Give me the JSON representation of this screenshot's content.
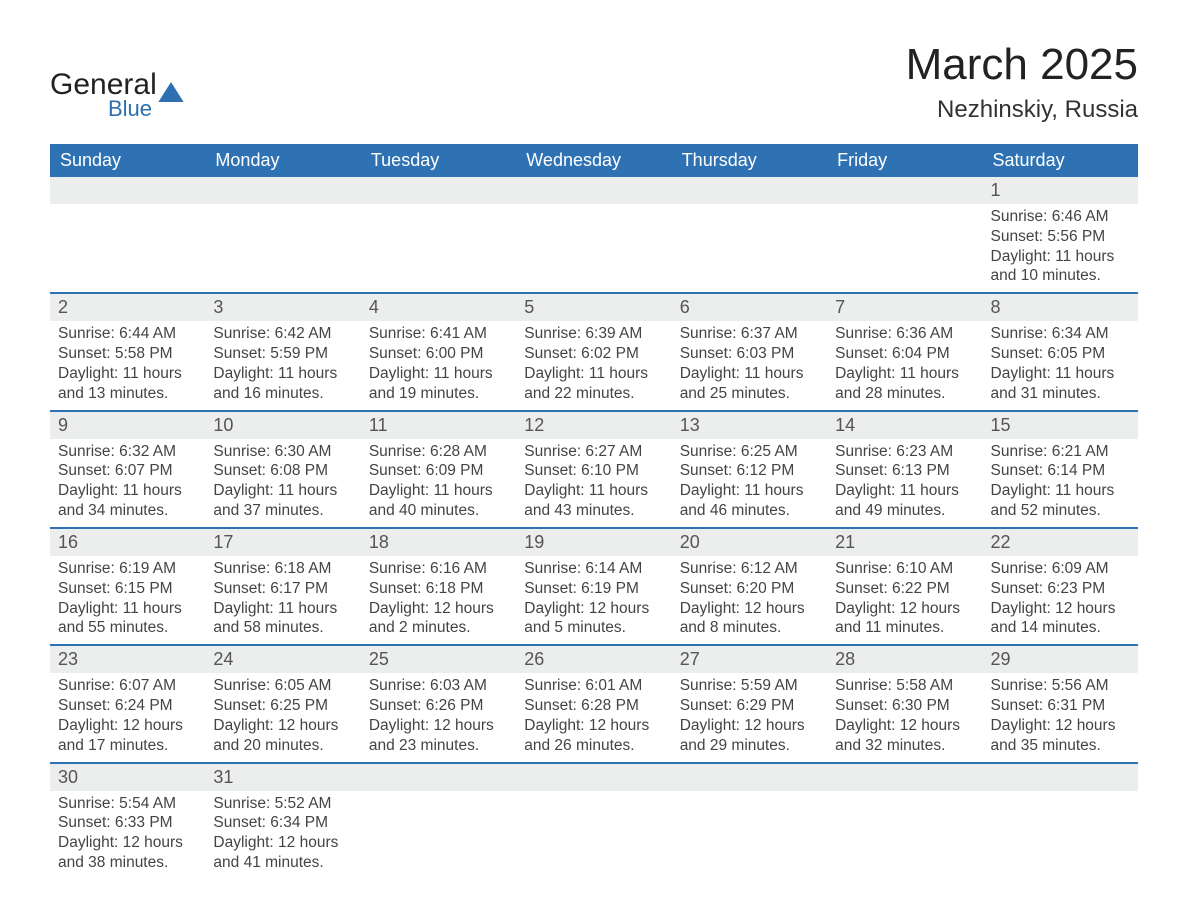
{
  "brand": {
    "name": "General",
    "sub": "Blue"
  },
  "title": "March 2025",
  "location": "Nezhinskiy, Russia",
  "colors": {
    "header_bg": "#2f72b3",
    "header_text": "#ffffff",
    "daynum_bg": "#eceded",
    "row_border": "#2f72b3",
    "body_text": "#444444",
    "title_text": "#222222",
    "brand_accent": "#2d6fb0",
    "page_bg": "#ffffff"
  },
  "typography": {
    "title_fontsize": 44,
    "location_fontsize": 24,
    "header_fontsize": 18,
    "daynum_fontsize": 18,
    "detail_fontsize": 15.5
  },
  "weekdays": [
    "Sunday",
    "Monday",
    "Tuesday",
    "Wednesday",
    "Thursday",
    "Friday",
    "Saturday"
  ],
  "weeks": [
    [
      null,
      null,
      null,
      null,
      null,
      null,
      {
        "n": "1",
        "sr": "Sunrise: 6:46 AM",
        "ss": "Sunset: 5:56 PM",
        "d1": "Daylight: 11 hours",
        "d2": "and 10 minutes."
      }
    ],
    [
      {
        "n": "2",
        "sr": "Sunrise: 6:44 AM",
        "ss": "Sunset: 5:58 PM",
        "d1": "Daylight: 11 hours",
        "d2": "and 13 minutes."
      },
      {
        "n": "3",
        "sr": "Sunrise: 6:42 AM",
        "ss": "Sunset: 5:59 PM",
        "d1": "Daylight: 11 hours",
        "d2": "and 16 minutes."
      },
      {
        "n": "4",
        "sr": "Sunrise: 6:41 AM",
        "ss": "Sunset: 6:00 PM",
        "d1": "Daylight: 11 hours",
        "d2": "and 19 minutes."
      },
      {
        "n": "5",
        "sr": "Sunrise: 6:39 AM",
        "ss": "Sunset: 6:02 PM",
        "d1": "Daylight: 11 hours",
        "d2": "and 22 minutes."
      },
      {
        "n": "6",
        "sr": "Sunrise: 6:37 AM",
        "ss": "Sunset: 6:03 PM",
        "d1": "Daylight: 11 hours",
        "d2": "and 25 minutes."
      },
      {
        "n": "7",
        "sr": "Sunrise: 6:36 AM",
        "ss": "Sunset: 6:04 PM",
        "d1": "Daylight: 11 hours",
        "d2": "and 28 minutes."
      },
      {
        "n": "8",
        "sr": "Sunrise: 6:34 AM",
        "ss": "Sunset: 6:05 PM",
        "d1": "Daylight: 11 hours",
        "d2": "and 31 minutes."
      }
    ],
    [
      {
        "n": "9",
        "sr": "Sunrise: 6:32 AM",
        "ss": "Sunset: 6:07 PM",
        "d1": "Daylight: 11 hours",
        "d2": "and 34 minutes."
      },
      {
        "n": "10",
        "sr": "Sunrise: 6:30 AM",
        "ss": "Sunset: 6:08 PM",
        "d1": "Daylight: 11 hours",
        "d2": "and 37 minutes."
      },
      {
        "n": "11",
        "sr": "Sunrise: 6:28 AM",
        "ss": "Sunset: 6:09 PM",
        "d1": "Daylight: 11 hours",
        "d2": "and 40 minutes."
      },
      {
        "n": "12",
        "sr": "Sunrise: 6:27 AM",
        "ss": "Sunset: 6:10 PM",
        "d1": "Daylight: 11 hours",
        "d2": "and 43 minutes."
      },
      {
        "n": "13",
        "sr": "Sunrise: 6:25 AM",
        "ss": "Sunset: 6:12 PM",
        "d1": "Daylight: 11 hours",
        "d2": "and 46 minutes."
      },
      {
        "n": "14",
        "sr": "Sunrise: 6:23 AM",
        "ss": "Sunset: 6:13 PM",
        "d1": "Daylight: 11 hours",
        "d2": "and 49 minutes."
      },
      {
        "n": "15",
        "sr": "Sunrise: 6:21 AM",
        "ss": "Sunset: 6:14 PM",
        "d1": "Daylight: 11 hours",
        "d2": "and 52 minutes."
      }
    ],
    [
      {
        "n": "16",
        "sr": "Sunrise: 6:19 AM",
        "ss": "Sunset: 6:15 PM",
        "d1": "Daylight: 11 hours",
        "d2": "and 55 minutes."
      },
      {
        "n": "17",
        "sr": "Sunrise: 6:18 AM",
        "ss": "Sunset: 6:17 PM",
        "d1": "Daylight: 11 hours",
        "d2": "and 58 minutes."
      },
      {
        "n": "18",
        "sr": "Sunrise: 6:16 AM",
        "ss": "Sunset: 6:18 PM",
        "d1": "Daylight: 12 hours",
        "d2": "and 2 minutes."
      },
      {
        "n": "19",
        "sr": "Sunrise: 6:14 AM",
        "ss": "Sunset: 6:19 PM",
        "d1": "Daylight: 12 hours",
        "d2": "and 5 minutes."
      },
      {
        "n": "20",
        "sr": "Sunrise: 6:12 AM",
        "ss": "Sunset: 6:20 PM",
        "d1": "Daylight: 12 hours",
        "d2": "and 8 minutes."
      },
      {
        "n": "21",
        "sr": "Sunrise: 6:10 AM",
        "ss": "Sunset: 6:22 PM",
        "d1": "Daylight: 12 hours",
        "d2": "and 11 minutes."
      },
      {
        "n": "22",
        "sr": "Sunrise: 6:09 AM",
        "ss": "Sunset: 6:23 PM",
        "d1": "Daylight: 12 hours",
        "d2": "and 14 minutes."
      }
    ],
    [
      {
        "n": "23",
        "sr": "Sunrise: 6:07 AM",
        "ss": "Sunset: 6:24 PM",
        "d1": "Daylight: 12 hours",
        "d2": "and 17 minutes."
      },
      {
        "n": "24",
        "sr": "Sunrise: 6:05 AM",
        "ss": "Sunset: 6:25 PM",
        "d1": "Daylight: 12 hours",
        "d2": "and 20 minutes."
      },
      {
        "n": "25",
        "sr": "Sunrise: 6:03 AM",
        "ss": "Sunset: 6:26 PM",
        "d1": "Daylight: 12 hours",
        "d2": "and 23 minutes."
      },
      {
        "n": "26",
        "sr": "Sunrise: 6:01 AM",
        "ss": "Sunset: 6:28 PM",
        "d1": "Daylight: 12 hours",
        "d2": "and 26 minutes."
      },
      {
        "n": "27",
        "sr": "Sunrise: 5:59 AM",
        "ss": "Sunset: 6:29 PM",
        "d1": "Daylight: 12 hours",
        "d2": "and 29 minutes."
      },
      {
        "n": "28",
        "sr": "Sunrise: 5:58 AM",
        "ss": "Sunset: 6:30 PM",
        "d1": "Daylight: 12 hours",
        "d2": "and 32 minutes."
      },
      {
        "n": "29",
        "sr": "Sunrise: 5:56 AM",
        "ss": "Sunset: 6:31 PM",
        "d1": "Daylight: 12 hours",
        "d2": "and 35 minutes."
      }
    ],
    [
      {
        "n": "30",
        "sr": "Sunrise: 5:54 AM",
        "ss": "Sunset: 6:33 PM",
        "d1": "Daylight: 12 hours",
        "d2": "and 38 minutes."
      },
      {
        "n": "31",
        "sr": "Sunrise: 5:52 AM",
        "ss": "Sunset: 6:34 PM",
        "d1": "Daylight: 12 hours",
        "d2": "and 41 minutes."
      },
      null,
      null,
      null,
      null,
      null
    ]
  ]
}
